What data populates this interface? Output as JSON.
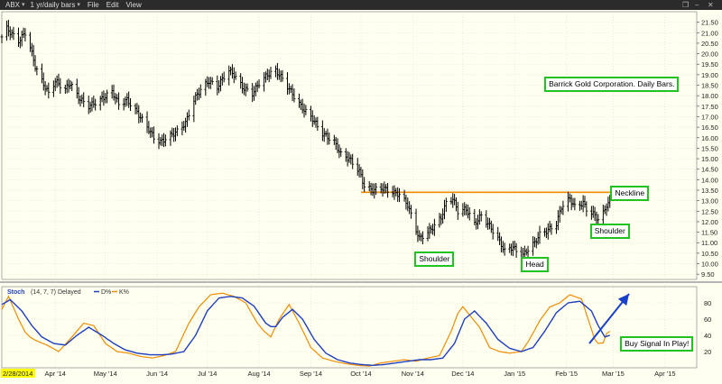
{
  "toolbar": {
    "symbol": "ABX",
    "period": "1 yr/daily bars",
    "menus": [
      "File",
      "Edit",
      "View"
    ]
  },
  "colors": {
    "background": "#fffff0",
    "bars": "#000000",
    "neckline": "#f08c00",
    "d_line": "#1f3fbf",
    "k_line": "#f08c00",
    "annotation_border": "#21c321",
    "arrow": "#1a3fc8"
  },
  "chart_data": [
    {
      "type": "bar",
      "chart": "price",
      "annotation_title": "Barrick Gold Corporation. Daily Bars.",
      "y_ticks": [
        "21.50",
        "21.00",
        "20.50",
        "20.00",
        "19.50",
        "19.00",
        "18.50",
        "18.00",
        "17.50",
        "17.00",
        "16.50",
        "16.00",
        "15.50",
        "15.00",
        "14.50",
        "14.00",
        "13.50",
        "13.00",
        "12.50",
        "12.00",
        "11.50",
        "11.00",
        "10.50",
        "10.00",
        "9.50"
      ],
      "ylim": [
        9.25,
        22.0
      ],
      "x_tick_labels": [
        "2/28/2014",
        "Apr '14",
        "May '14",
        "Jun '14",
        "Jul '14",
        "Aug '14",
        "Sep '14",
        "Oct '14",
        "Nov '14",
        "Dec '14",
        "Jan '15",
        "Feb '15",
        "Mar '15",
        "Apr '15"
      ],
      "x_tick_dates": [
        "2014-02-28",
        "2014-04-01",
        "2014-05-01",
        "2014-06-01",
        "2014-07-01",
        "2014-08-01",
        "2014-09-01",
        "2014-10-01",
        "2014-11-01",
        "2014-12-01",
        "2015-01-01",
        "2015-02-01",
        "2015-03-01",
        "2015-04-01"
      ],
      "xlim_dates": [
        "2014-02-28",
        "2015-04-20"
      ],
      "close_keypoints": [
        [
          "2014-02-28",
          20.8
        ],
        [
          "2014-03-03",
          21.2
        ],
        [
          "2014-03-10",
          20.6
        ],
        [
          "2014-03-14",
          21.0
        ],
        [
          "2014-03-17",
          20.3
        ],
        [
          "2014-03-20",
          19.4
        ],
        [
          "2014-03-24",
          18.7
        ],
        [
          "2014-03-28",
          18.1
        ],
        [
          "2014-04-01",
          18.7
        ],
        [
          "2014-04-07",
          18.3
        ],
        [
          "2014-04-10",
          18.6
        ],
        [
          "2014-04-15",
          17.9
        ],
        [
          "2014-04-21",
          17.5
        ],
        [
          "2014-04-28",
          17.8
        ],
        [
          "2014-05-05",
          18.2
        ],
        [
          "2014-05-09",
          17.6
        ],
        [
          "2014-05-14",
          17.8
        ],
        [
          "2014-05-20",
          17.2
        ],
        [
          "2014-05-27",
          16.4
        ],
        [
          "2014-05-30",
          16.0
        ],
        [
          "2014-06-03",
          15.8
        ],
        [
          "2014-06-09",
          16.1
        ],
        [
          "2014-06-13",
          16.3
        ],
        [
          "2014-06-18",
          16.7
        ],
        [
          "2014-06-23",
          17.8
        ],
        [
          "2014-06-27",
          18.3
        ],
        [
          "2014-07-02",
          18.7
        ],
        [
          "2014-07-07",
          18.4
        ],
        [
          "2014-07-10",
          18.8
        ],
        [
          "2014-07-14",
          19.2
        ],
        [
          "2014-07-17",
          19.0
        ],
        [
          "2014-07-22",
          18.4
        ],
        [
          "2014-07-28",
          18.1
        ],
        [
          "2014-08-01",
          18.6
        ],
        [
          "2014-08-06",
          19.0
        ],
        [
          "2014-08-11",
          19.2
        ],
        [
          "2014-08-15",
          18.8
        ],
        [
          "2014-08-20",
          18.2
        ],
        [
          "2014-08-26",
          17.5
        ],
        [
          "2014-09-02",
          16.9
        ],
        [
          "2014-09-08",
          16.2
        ],
        [
          "2014-09-15",
          15.8
        ],
        [
          "2014-09-19",
          15.2
        ],
        [
          "2014-09-24",
          15.0
        ],
        [
          "2014-09-30",
          14.4
        ],
        [
          "2014-10-03",
          13.7
        ],
        [
          "2014-10-08",
          13.5
        ],
        [
          "2014-10-14",
          13.6
        ],
        [
          "2014-10-20",
          13.4
        ],
        [
          "2014-10-24",
          13.3
        ],
        [
          "2014-10-29",
          12.8
        ],
        [
          "2014-11-03",
          11.6
        ],
        [
          "2014-11-05",
          11.2
        ],
        [
          "2014-11-10",
          11.5
        ],
        [
          "2014-11-14",
          11.8
        ],
        [
          "2014-11-18",
          12.2
        ],
        [
          "2014-11-21",
          12.9
        ],
        [
          "2014-11-25",
          13.1
        ],
        [
          "2014-11-28",
          12.5
        ],
        [
          "2014-12-03",
          12.6
        ],
        [
          "2014-12-08",
          11.9
        ],
        [
          "2014-12-12",
          12.3
        ],
        [
          "2014-12-17",
          11.8
        ],
        [
          "2014-12-22",
          11.2
        ],
        [
          "2014-12-26",
          10.6
        ],
        [
          "2014-12-31",
          10.8
        ],
        [
          "2015-01-05",
          10.3
        ],
        [
          "2015-01-08",
          10.6
        ],
        [
          "2015-01-13",
          11.0
        ],
        [
          "2015-01-16",
          11.4
        ],
        [
          "2015-01-21",
          11.6
        ],
        [
          "2015-01-26",
          11.9
        ],
        [
          "2015-01-29",
          12.7
        ],
        [
          "2015-02-03",
          13.1
        ],
        [
          "2015-02-06",
          12.7
        ],
        [
          "2015-02-11",
          12.9
        ],
        [
          "2015-02-13",
          12.6
        ],
        [
          "2015-02-18",
          12.3
        ],
        [
          "2015-02-20",
          12.1
        ],
        [
          "2015-02-23",
          12.4
        ],
        [
          "2015-02-25",
          12.8
        ],
        [
          "2015-02-27",
          12.9
        ]
      ],
      "annotations": [
        {
          "text": "Barrick Gold Corporation. Daily Bars.",
          "date": "2015-02-28",
          "value": 18.55
        },
        {
          "text": "Neckline",
          "date": "2015-03-11",
          "value": 13.35
        },
        {
          "text": "Shoulder",
          "date": "2014-11-14",
          "value": 10.2
        },
        {
          "text": "Head",
          "date": "2015-01-13",
          "value": 9.95
        },
        {
          "text": "Shoulder",
          "date": "2015-02-27",
          "value": 11.55
        }
      ],
      "neckline": {
        "value": 13.4,
        "from": "2014-10-01",
        "to": "2015-03-16"
      }
    },
    {
      "type": "line",
      "chart": "stochastic",
      "indicator_label": "Stoch",
      "params_label": "(14, 7, 7) Delayed",
      "legend": [
        "D%",
        "K%"
      ],
      "y_ticks": [
        "80",
        "60",
        "40",
        "20"
      ],
      "ylim": [
        0,
        100
      ],
      "series": [
        {
          "name": "D%",
          "keypoints": [
            [
              "2014-02-28",
              78
            ],
            [
              "2014-03-05",
              84
            ],
            [
              "2014-03-12",
              70
            ],
            [
              "2014-03-18",
              52
            ],
            [
              "2014-03-24",
              38
            ],
            [
              "2014-03-31",
              30
            ],
            [
              "2014-04-07",
              28
            ],
            [
              "2014-04-14",
              40
            ],
            [
              "2014-04-21",
              50
            ],
            [
              "2014-04-29",
              40
            ],
            [
              "2014-05-06",
              30
            ],
            [
              "2014-05-13",
              22
            ],
            [
              "2014-05-20",
              18
            ],
            [
              "2014-05-28",
              16
            ],
            [
              "2014-06-04",
              16
            ],
            [
              "2014-06-10",
              17
            ],
            [
              "2014-06-17",
              20
            ],
            [
              "2014-06-24",
              40
            ],
            [
              "2014-07-01",
              70
            ],
            [
              "2014-07-08",
              86
            ],
            [
              "2014-07-15",
              88
            ],
            [
              "2014-07-22",
              86
            ],
            [
              "2014-07-29",
              76
            ],
            [
              "2014-08-05",
              55
            ],
            [
              "2014-08-10",
              48
            ],
            [
              "2014-08-15",
              62
            ],
            [
              "2014-08-21",
              72
            ],
            [
              "2014-08-27",
              60
            ],
            [
              "2014-09-03",
              35
            ],
            [
              "2014-09-10",
              18
            ],
            [
              "2014-09-17",
              10
            ],
            [
              "2014-09-24",
              6
            ],
            [
              "2014-10-01",
              4
            ],
            [
              "2014-10-08",
              3
            ],
            [
              "2014-10-15",
              4
            ],
            [
              "2014-10-22",
              6
            ],
            [
              "2014-10-29",
              8
            ],
            [
              "2014-11-05",
              10
            ],
            [
              "2014-11-12",
              10
            ],
            [
              "2014-11-19",
              12
            ],
            [
              "2014-11-26",
              30
            ],
            [
              "2014-12-02",
              60
            ],
            [
              "2014-12-08",
              70
            ],
            [
              "2014-12-15",
              55
            ],
            [
              "2014-12-22",
              35
            ],
            [
              "2014-12-29",
              24
            ],
            [
              "2015-01-05",
              20
            ],
            [
              "2015-01-12",
              25
            ],
            [
              "2015-01-19",
              45
            ],
            [
              "2015-01-26",
              68
            ],
            [
              "2015-02-02",
              80
            ],
            [
              "2015-02-09",
              82
            ],
            [
              "2015-02-16",
              70
            ],
            [
              "2015-02-20",
              52
            ],
            [
              "2015-02-24",
              38
            ],
            [
              "2015-02-27",
              40
            ]
          ]
        },
        {
          "name": "K%",
          "keypoints": [
            [
              "2014-02-28",
              72
            ],
            [
              "2014-03-04",
              88
            ],
            [
              "2014-03-10",
              60
            ],
            [
              "2014-03-15",
              40
            ],
            [
              "2014-03-20",
              34
            ],
            [
              "2014-03-27",
              28
            ],
            [
              "2014-04-03",
              20
            ],
            [
              "2014-04-11",
              38
            ],
            [
              "2014-04-18",
              55
            ],
            [
              "2014-04-24",
              52
            ],
            [
              "2014-05-01",
              30
            ],
            [
              "2014-05-08",
              20
            ],
            [
              "2014-05-15",
              18
            ],
            [
              "2014-05-22",
              14
            ],
            [
              "2014-05-29",
              12
            ],
            [
              "2014-06-05",
              15
            ],
            [
              "2014-06-12",
              20
            ],
            [
              "2014-06-20",
              55
            ],
            [
              "2014-06-26",
              75
            ],
            [
              "2014-07-03",
              90
            ],
            [
              "2014-07-10",
              92
            ],
            [
              "2014-07-17",
              88
            ],
            [
              "2014-07-24",
              80
            ],
            [
              "2014-07-31",
              55
            ],
            [
              "2014-08-04",
              45
            ],
            [
              "2014-08-08",
              38
            ],
            [
              "2014-08-13",
              60
            ],
            [
              "2014-08-19",
              78
            ],
            [
              "2014-08-25",
              55
            ],
            [
              "2014-09-01",
              25
            ],
            [
              "2014-09-08",
              12
            ],
            [
              "2014-09-15",
              8
            ],
            [
              "2014-09-22",
              5
            ],
            [
              "2014-09-29",
              3
            ],
            [
              "2014-10-06",
              2
            ],
            [
              "2014-10-13",
              6
            ],
            [
              "2014-10-20",
              8
            ],
            [
              "2014-10-27",
              10
            ],
            [
              "2014-11-03",
              8
            ],
            [
              "2014-11-10",
              12
            ],
            [
              "2014-11-17",
              15
            ],
            [
              "2014-11-24",
              45
            ],
            [
              "2014-11-30",
              78
            ],
            [
              "2014-12-05",
              65
            ],
            [
              "2014-12-11",
              50
            ],
            [
              "2014-12-17",
              25
            ],
            [
              "2014-12-23",
              20
            ],
            [
              "2014-12-29",
              18
            ],
            [
              "2015-01-05",
              20
            ],
            [
              "2015-01-10",
              35
            ],
            [
              "2015-01-16",
              58
            ],
            [
              "2015-01-22",
              75
            ],
            [
              "2015-01-28",
              80
            ],
            [
              "2015-02-03",
              90
            ],
            [
              "2015-02-10",
              85
            ],
            [
              "2015-02-14",
              60
            ],
            [
              "2015-02-18",
              35
            ],
            [
              "2015-02-22",
              25
            ],
            [
              "2015-02-25",
              42
            ],
            [
              "2015-02-27",
              45
            ]
          ]
        }
      ],
      "annotations": [
        {
          "text": "Buy Signal In Play!",
          "date": "2015-03-27",
          "value": 30
        }
      ]
    }
  ]
}
